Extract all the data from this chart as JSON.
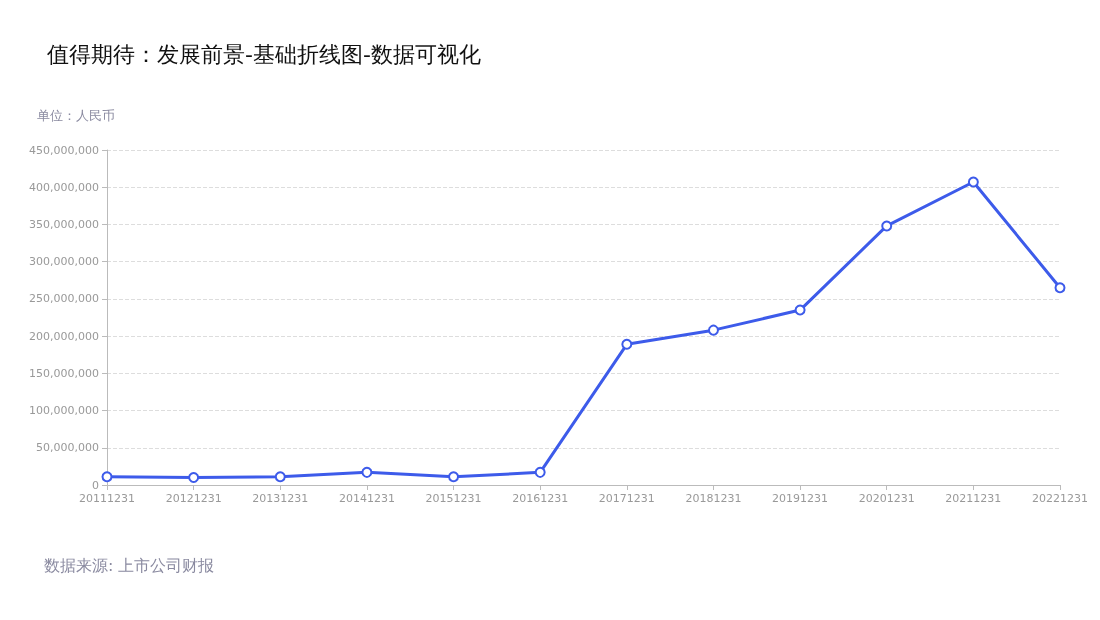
{
  "chart_data": {
    "type": "line",
    "title": "值得期待：发展前景-基础折线图-数据可视化",
    "ylabel": "单位：人民币",
    "categories": [
      "20111231",
      "20121231",
      "20131231",
      "20141231",
      "20151231",
      "20161231",
      "20171231",
      "20181231",
      "20191231",
      "20201231",
      "20211231",
      "20221231"
    ],
    "series": [
      {
        "color": "#3d5bea",
        "values": [
          11000000,
          10000000,
          11000000,
          17000000,
          11000000,
          17000000,
          189000000,
          208000000,
          235000000,
          348000000,
          407000000,
          265000000
        ]
      }
    ],
    "ylim": [
      0,
      450000000
    ],
    "yticks": [
      0,
      {
        "value": 50000000,
        "label": "50,000,000"
      },
      {
        "value": 100000000,
        "label": "100,000,000"
      },
      {
        "value": 150000000,
        "label": "150,000,000"
      },
      {
        "value": 200000000,
        "label": "200,000,000"
      },
      {
        "value": 250000000,
        "label": "250,000,000"
      },
      {
        "value": 300000000,
        "label": "300,000,000"
      },
      {
        "value": 350000000,
        "label": "350,000,000"
      },
      {
        "value": 400000000,
        "label": "400,000,000"
      },
      {
        "value": 450000000,
        "label": "450,000,000"
      }
    ],
    "grid": "y",
    "marker": "circle",
    "line_style": "solid",
    "annotations": [
      "数据来源: 上市公司财报"
    ]
  }
}
